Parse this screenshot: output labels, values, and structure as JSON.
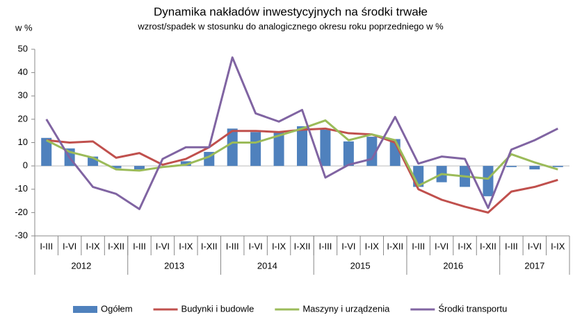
{
  "chart_data": {
    "type": "bar-line",
    "title": "Dynamika nakładów inwestycyjnych na środki trwałe",
    "subtitle": "wzrost/spadek w stosunku do analogicznego okresu roku poprzedniego w %",
    "y_label": "w %",
    "groups": [
      {
        "name": "2012",
        "categories": [
          "I-III",
          "I-VI",
          "I-IX",
          "I-XII"
        ]
      },
      {
        "name": "2013",
        "categories": [
          "I-III",
          "I-VI",
          "I-IX",
          "I-XII"
        ]
      },
      {
        "name": "2014",
        "categories": [
          "I-III",
          "I-VI",
          "I-IX",
          "I-XII"
        ]
      },
      {
        "name": "2015",
        "categories": [
          "I-III",
          "I-VI",
          "I-IX",
          "I-XII"
        ]
      },
      {
        "name": "2016",
        "categories": [
          "I-III",
          "I-VI",
          "I-IX",
          "I-XII"
        ]
      },
      {
        "name": "2017",
        "categories": [
          "I-III",
          "I-VI",
          "I-IX"
        ]
      }
    ],
    "series": [
      {
        "name": "Ogółem",
        "type": "bar",
        "color": "#4f81bd",
        "values": [
          12,
          7.5,
          4,
          -1,
          -1.5,
          0,
          2,
          6,
          16,
          14.5,
          14.5,
          17,
          15.5,
          10.5,
          12.5,
          11.5,
          -9,
          -7,
          -9,
          -13,
          -0.5,
          -1.5,
          -0.5
        ]
      },
      {
        "name": "Budynki i budowle",
        "type": "line",
        "color": "#c0504d",
        "values": [
          11,
          10,
          10.5,
          3.5,
          5.5,
          0.5,
          3,
          8,
          15,
          15,
          14.5,
          15.5,
          16,
          14,
          13.5,
          10,
          -10,
          -14.5,
          -17.5,
          -20,
          -11,
          -9,
          -6
        ]
      },
      {
        "name": "Maszyny i urządzenia",
        "type": "line",
        "color": "#9bbb59",
        "values": [
          11,
          6,
          3.5,
          -1.5,
          -2,
          -0.5,
          0.5,
          4,
          10,
          10,
          13,
          16,
          19.5,
          11,
          13.5,
          11,
          -8.5,
          -3.5,
          -4.5,
          -5.5,
          5,
          1.5,
          -1.5
        ]
      },
      {
        "name": "Środki transportu",
        "type": "line",
        "color": "#8064a2",
        "values": [
          20,
          3.5,
          -9,
          -12,
          -18.5,
          3,
          8,
          8,
          46.5,
          22.5,
          19,
          24,
          -5,
          0.5,
          3,
          21,
          1,
          4,
          3,
          -18,
          7,
          11,
          16
        ]
      }
    ],
    "ylim": [
      -30,
      50
    ],
    "yticks": [
      -30,
      -20,
      -10,
      0,
      10,
      20,
      30,
      40,
      50
    ],
    "grid": false
  }
}
